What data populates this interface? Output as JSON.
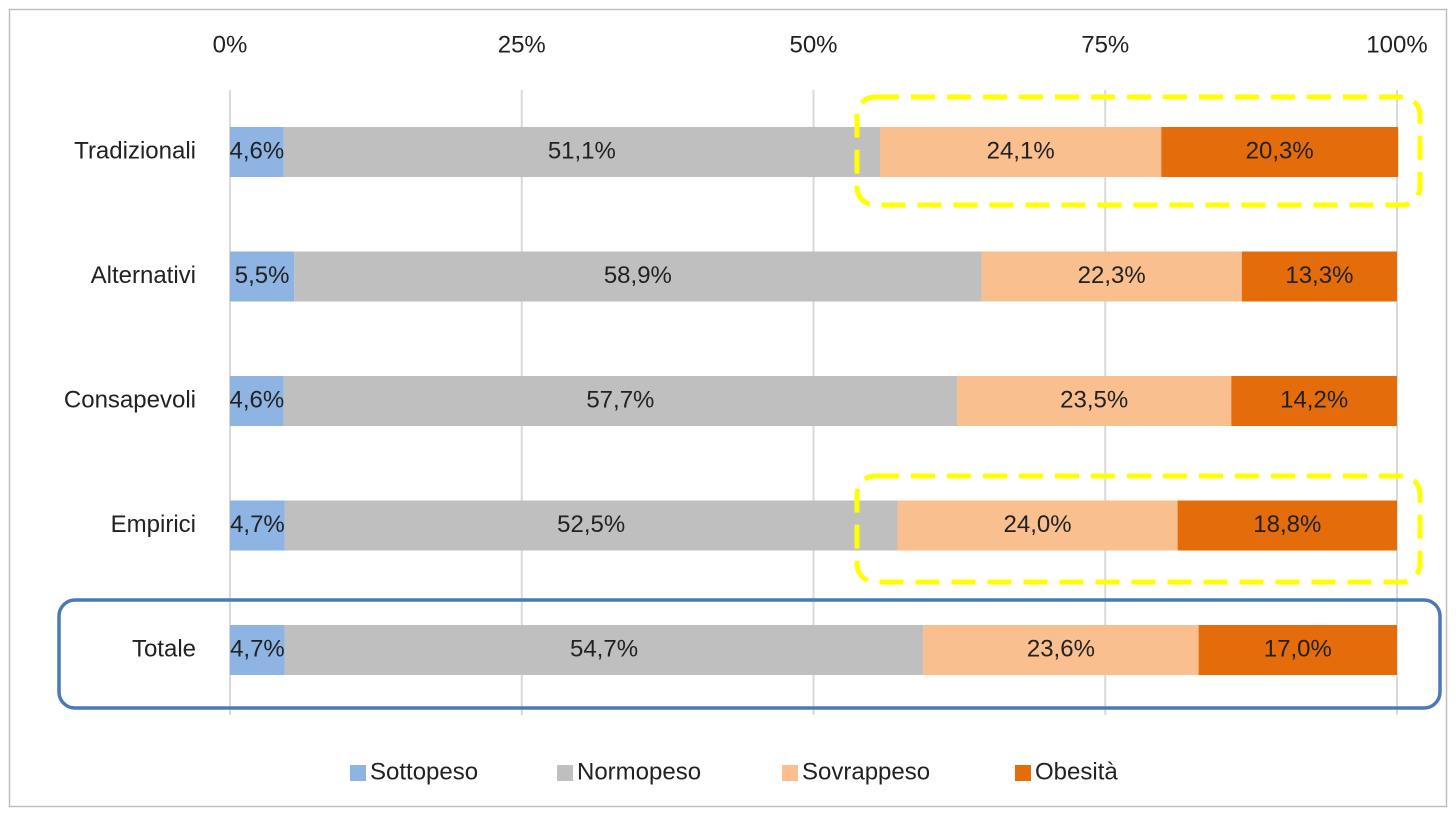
{
  "chart_data": {
    "type": "bar",
    "orientation": "horizontal",
    "stacked": true,
    "categories": [
      "Tradizionali",
      "Alternativi",
      "Consapevoli",
      "Empirici",
      "Totale"
    ],
    "series": [
      {
        "name": "Sottopeso",
        "color": "#8db4e2",
        "values": [
          4.6,
          5.5,
          4.6,
          4.7,
          4.7
        ],
        "value_labels": [
          "4,6%",
          "5,5%",
          "4,6%",
          "4,7%",
          "4,7%"
        ]
      },
      {
        "name": "Normopeso",
        "color": "#bfbfbf",
        "values": [
          51.1,
          58.9,
          57.7,
          52.5,
          54.7
        ],
        "value_labels": [
          "51,1%",
          "58,9%",
          "57,7%",
          "52,5%",
          "54,7%"
        ]
      },
      {
        "name": "Sovrappeso",
        "color": "#f9bf8f",
        "values": [
          24.1,
          22.3,
          23.5,
          24.0,
          23.6
        ],
        "value_labels": [
          "24,1%",
          "22,3%",
          "23,5%",
          "24,0%",
          "23,6%"
        ]
      },
      {
        "name": "Obesità",
        "color": "#e46c0a",
        "values": [
          20.3,
          13.3,
          14.2,
          18.8,
          17.0
        ],
        "value_labels": [
          "20,3%",
          "13,3%",
          "14,2%",
          "18,8%",
          "17,0%"
        ]
      }
    ],
    "xlim": [
      0,
      100
    ],
    "xticks": [
      {
        "value": 0,
        "label": "0%"
      },
      {
        "value": 25,
        "label": "25%"
      },
      {
        "value": 50,
        "label": "50%"
      },
      {
        "value": 75,
        "label": "75%"
      },
      {
        "value": 100,
        "label": "100%"
      }
    ],
    "grid": true,
    "legend": "bottom"
  }
}
